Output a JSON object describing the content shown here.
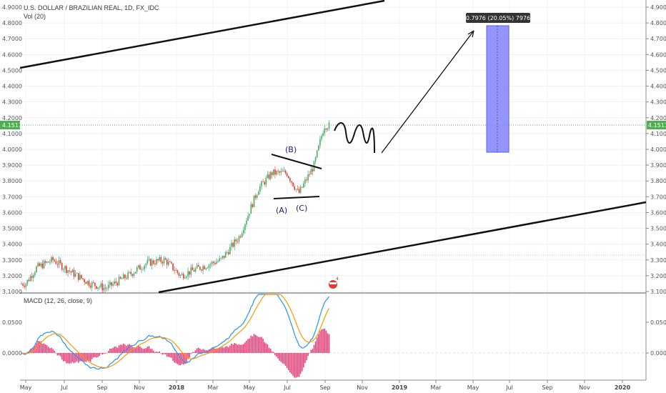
{
  "header": {
    "symbol_title": "U.S. DOLLAR / BRAZILIAN REAL, 1D, FX_IDC",
    "volume_label": "Vol (20)"
  },
  "price_axis": {
    "ticks": [
      "4.9000",
      "4.8000",
      "4.7000",
      "4.6000",
      "4.5000",
      "4.4000",
      "4.3000",
      "4.2000",
      "4.1000",
      "4.0000",
      "3.9000",
      "3.8000",
      "3.7000",
      "3.6000",
      "3.5000",
      "3.4000",
      "3.3000",
      "3.2000",
      "3.1000"
    ],
    "current_price": "4.1511",
    "accent_color": "#4caf50"
  },
  "macd_panel": {
    "label": "MACD (12, 26, close, 9)",
    "ticks": [
      "0.0500",
      "0.0000"
    ],
    "macd_color": "#2196f3",
    "signal_color": "#ff9800",
    "histogram_color": "#e91e63"
  },
  "time_axis": {
    "labels": [
      "May",
      "Jul",
      "Sep",
      "Nov",
      "2018",
      "Mar",
      "May",
      "Jul",
      "Sep",
      "Nov",
      "2019",
      "Mar",
      "May",
      "Jul",
      "Sep",
      "Nov",
      "2020"
    ]
  },
  "annotations": {
    "wave_a": "(A)",
    "wave_b": "(B)",
    "wave_c": "(C)",
    "target_label": "0.7976 (20.05%) 7976"
  },
  "chart_data": {
    "type": "candlestick",
    "x_range": [
      "2017-05",
      "2020-01"
    ],
    "ylim": [
      3.1,
      4.9
    ],
    "series": [
      {
        "name": "close",
        "dates": [
          "2017-05-01",
          "2017-05-18",
          "2017-06-15",
          "2017-07-15",
          "2017-08-15",
          "2017-09-10",
          "2017-10-15",
          "2017-11-15",
          "2017-12-15",
          "2018-01-10",
          "2018-02-10",
          "2018-03-15",
          "2018-04-15",
          "2018-05-15",
          "2018-06-07",
          "2018-07-01",
          "2018-07-20",
          "2018-08-15",
          "2018-09-01"
        ],
        "values": [
          3.15,
          3.25,
          3.3,
          3.22,
          3.15,
          3.12,
          3.2,
          3.28,
          3.3,
          3.2,
          3.25,
          3.3,
          3.45,
          3.75,
          3.85,
          3.85,
          3.72,
          3.9,
          4.15
        ]
      }
    ],
    "current_price": 4.1511,
    "projection_target_change": "0.7976 (20.05%)"
  }
}
